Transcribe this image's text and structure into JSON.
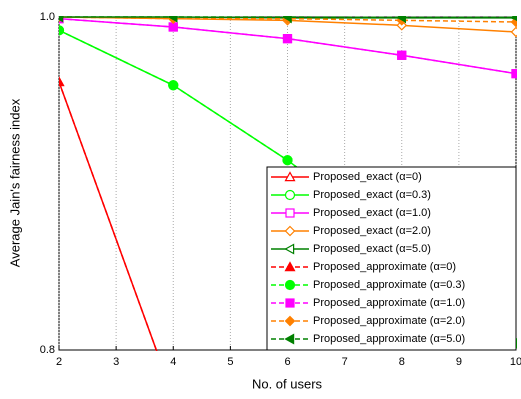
{
  "chart_data": {
    "type": "line",
    "x_label": "No. of users",
    "y_label": "Average Jain's fairness index",
    "x": [
      2,
      4,
      6,
      8,
      10
    ],
    "xlim": [
      2,
      10
    ],
    "xticks": [
      2,
      3,
      4,
      5,
      6,
      7,
      8,
      9,
      10
    ],
    "ylim": [
      0.8,
      1.0
    ],
    "yticks": [
      0.8,
      {
        "value": 1.0,
        "label": "1.0"
      }
    ],
    "grid": "x",
    "legend": "lower right",
    "series": [
      {
        "name": "Proposed_exact (α=0)",
        "color": "#ff0000",
        "marker": "triangle-up",
        "filled": false,
        "dashed": false,
        "values": [
          0.961,
          0.772,
          null,
          null,
          null
        ]
      },
      {
        "name": "Proposed_exact (α=0.3)",
        "color": "#00ff00",
        "marker": "circle",
        "filled": false,
        "dashed": false,
        "values": [
          0.992,
          0.959,
          0.914,
          0.862,
          0.804
        ]
      },
      {
        "name": "Proposed_exact (α=1.0)",
        "color": "#ff00ff",
        "marker": "square",
        "filled": false,
        "dashed": false,
        "values": [
          0.999,
          0.994,
          0.987,
          0.977,
          0.966
        ]
      },
      {
        "name": "Proposed_exact (α=2.0)",
        "color": "#ff8000",
        "marker": "diamond",
        "filled": false,
        "dashed": false,
        "values": [
          1.0,
          0.999,
          0.998,
          0.995,
          0.991
        ]
      },
      {
        "name": "Proposed_exact (α=5.0)",
        "color": "#008000",
        "marker": "triangle-left",
        "filled": false,
        "dashed": false,
        "values": [
          1.0,
          1.0,
          0.9995,
          0.9995,
          0.9995
        ]
      },
      {
        "name": "Proposed_approximate (α=0)",
        "color": "#ff0000",
        "marker": "triangle-up",
        "filled": true,
        "dashed": true,
        "values": [
          0.961,
          0.772,
          null,
          null,
          null
        ]
      },
      {
        "name": "Proposed_approximate (α=0.3)",
        "color": "#00ff00",
        "marker": "circle",
        "filled": true,
        "dashed": true,
        "values": [
          0.992,
          0.959,
          0.914,
          0.862,
          0.804
        ]
      },
      {
        "name": "Proposed_approximate (α=1.0)",
        "color": "#ff00ff",
        "marker": "square",
        "filled": true,
        "dashed": true,
        "values": [
          0.999,
          0.994,
          0.987,
          0.977,
          0.966
        ]
      },
      {
        "name": "Proposed_approximate (α=2.0)",
        "color": "#ff8000",
        "marker": "diamond",
        "filled": true,
        "dashed": true,
        "values": [
          1.0,
          0.999,
          0.999,
          0.998,
          0.997
        ]
      },
      {
        "name": "Proposed_approximate (α=5.0)",
        "color": "#008000",
        "marker": "triangle-left",
        "filled": true,
        "dashed": true,
        "values": [
          1.0,
          1.0,
          1.0,
          0.9998,
          0.9998
        ]
      }
    ]
  }
}
